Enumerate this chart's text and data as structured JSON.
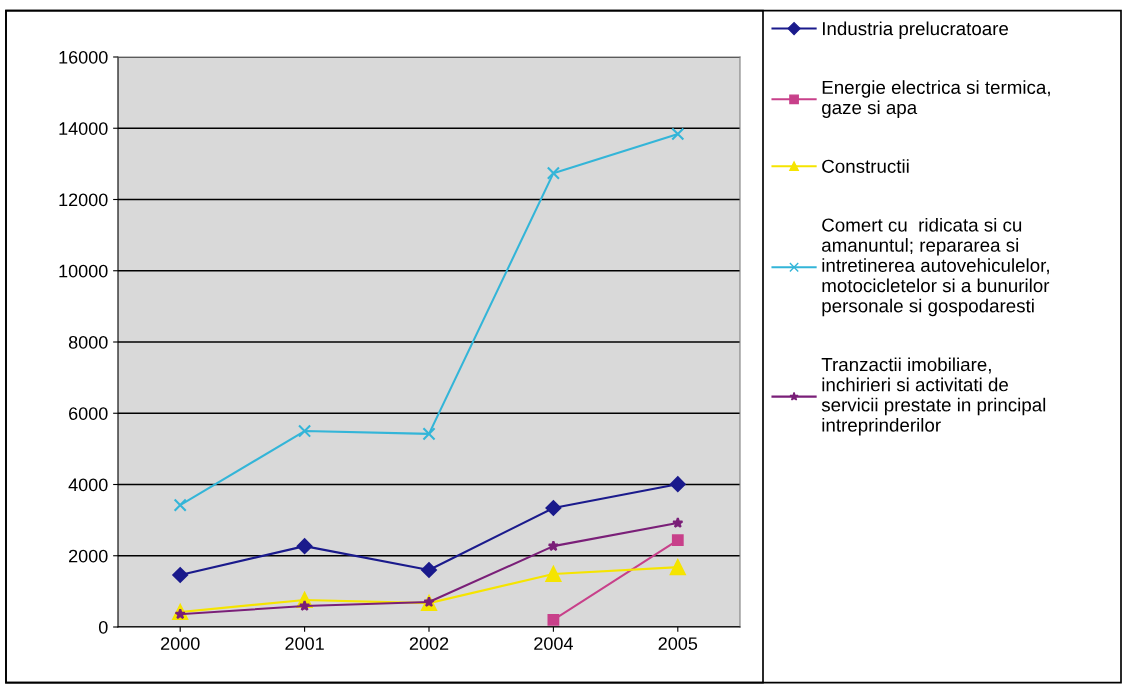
{
  "chart_data": {
    "type": "line",
    "categories": [
      "2000",
      "2001",
      "2002",
      "2004",
      "2005"
    ],
    "series": [
      {
        "name": "Industria prelucratoare",
        "color": "#1a1a8c",
        "marker": "diamond",
        "values": [
          1460,
          2270,
          1600,
          3340,
          4010
        ]
      },
      {
        "name": "Energie electrica si termica,\ngaze si apa",
        "color": "#c8408a",
        "marker": "square",
        "values": [
          null,
          null,
          null,
          200,
          2440
        ]
      },
      {
        "name": "Constructii",
        "color": "#f5e400",
        "marker": "triangle",
        "values": [
          420,
          760,
          670,
          1490,
          1680
        ]
      },
      {
        "name": "Comert cu  ridicata si cu\namanuntul; repararea si\nintretinerea autovehiculelor,\nmotocicletelor si a bunurilor\npersonale si gospodaresti",
        "color": "#33b5d8",
        "marker": "cross",
        "values": [
          3420,
          5500,
          5420,
          12740,
          13840
        ]
      },
      {
        "name": "Tranzactii imobiliare,\ninchirieri si activitati de\nservicii prestate in principal\nintreprinderilor",
        "color": "#7a1f78",
        "marker": "star",
        "values": [
          360,
          590,
          700,
          2270,
          2920
        ]
      }
    ],
    "ylim": [
      0,
      16000
    ],
    "yticks": [
      0,
      2000,
      4000,
      6000,
      8000,
      10000,
      12000,
      14000,
      16000
    ],
    "grid": "y",
    "legend": "right"
  }
}
